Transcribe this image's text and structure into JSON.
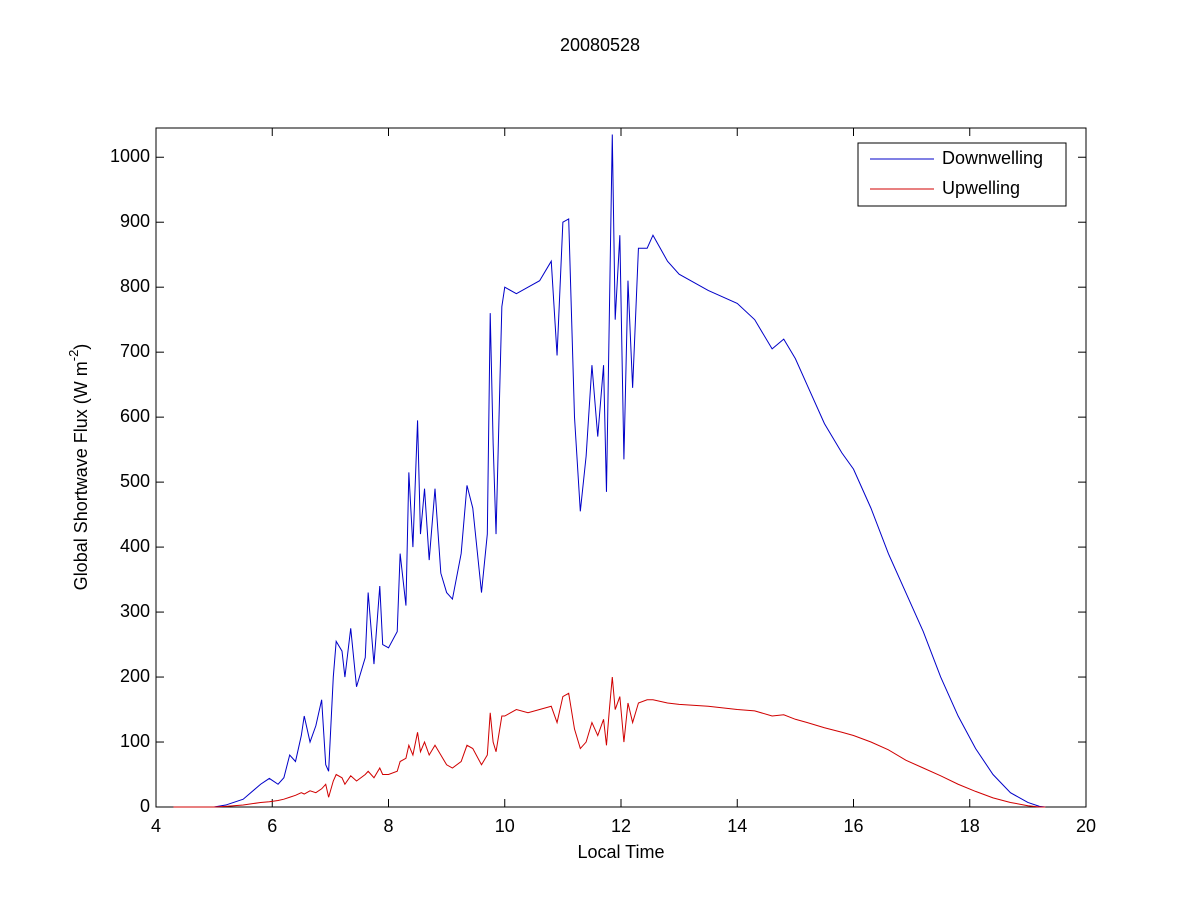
{
  "chart_data": {
    "type": "line",
    "title": "20080528",
    "xlabel": "Local Time",
    "ylabel": {
      "text": "Global Shortwave Flux (W m",
      "superscript": "-2",
      "suffix": ")"
    },
    "xlim": [
      4,
      20
    ],
    "xticks": [
      4,
      6,
      8,
      10,
      12,
      14,
      16,
      18,
      20
    ],
    "ylim": [
      0,
      1045
    ],
    "yticks": [
      0,
      100,
      200,
      300,
      400,
      500,
      600,
      700,
      800,
      900,
      1000
    ],
    "legend": "northeast",
    "x": [
      4.3,
      4.5,
      5.0,
      5.2,
      5.5,
      5.8,
      5.95,
      6.1,
      6.2,
      6.3,
      6.4,
      6.5,
      6.55,
      6.65,
      6.75,
      6.85,
      6.92,
      6.97,
      7.05,
      7.1,
      7.2,
      7.25,
      7.35,
      7.45,
      7.6,
      7.65,
      7.75,
      7.85,
      7.9,
      8.0,
      8.15,
      8.2,
      8.3,
      8.35,
      8.42,
      8.5,
      8.55,
      8.62,
      8.7,
      8.8,
      8.9,
      9.0,
      9.1,
      9.25,
      9.35,
      9.45,
      9.6,
      9.7,
      9.75,
      9.8,
      9.85,
      9.95,
      10.0,
      10.2,
      10.4,
      10.6,
      10.8,
      10.9,
      11.0,
      11.1,
      11.2,
      11.3,
      11.4,
      11.5,
      11.6,
      11.7,
      11.75,
      11.8,
      11.85,
      11.9,
      11.98,
      12.05,
      12.12,
      12.2,
      12.3,
      12.45,
      12.55,
      12.8,
      13.0,
      13.5,
      14.0,
      14.3,
      14.6,
      14.8,
      15.0,
      15.2,
      15.5,
      15.8,
      16.0,
      16.3,
      16.6,
      16.9,
      17.2,
      17.5,
      17.8,
      18.1,
      18.4,
      18.7,
      19.0,
      19.2,
      19.3
    ],
    "series": [
      {
        "name": "Downwelling",
        "color": "#0000c8",
        "values": [
          0,
          0,
          0,
          3,
          12,
          35,
          44,
          35,
          45,
          80,
          70,
          110,
          140,
          100,
          125,
          165,
          65,
          55,
          200,
          255,
          240,
          200,
          275,
          185,
          230,
          330,
          220,
          340,
          250,
          245,
          270,
          390,
          310,
          515,
          400,
          595,
          420,
          490,
          380,
          490,
          360,
          330,
          320,
          390,
          495,
          460,
          330,
          420,
          760,
          560,
          420,
          770,
          800,
          790,
          800,
          810,
          840,
          695,
          900,
          905,
          600,
          455,
          540,
          680,
          570,
          680,
          485,
          760,
          1035,
          750,
          880,
          535,
          810,
          645,
          860,
          860,
          880,
          840,
          820,
          795,
          775,
          750,
          705,
          720,
          690,
          650,
          590,
          545,
          520,
          460,
          390,
          330,
          270,
          200,
          140,
          90,
          50,
          22,
          7,
          1,
          0
        ]
      },
      {
        "name": "Upwelling",
        "color": "#d00000",
        "values": [
          0,
          0,
          0,
          1,
          3,
          7,
          8,
          10,
          12,
          15,
          18,
          22,
          20,
          25,
          22,
          28,
          35,
          15,
          40,
          50,
          45,
          35,
          48,
          40,
          50,
          55,
          45,
          60,
          50,
          50,
          55,
          70,
          75,
          95,
          80,
          115,
          85,
          100,
          80,
          95,
          80,
          65,
          60,
          70,
          95,
          90,
          65,
          80,
          145,
          100,
          85,
          140,
          140,
          150,
          145,
          150,
          155,
          130,
          170,
          175,
          120,
          90,
          100,
          130,
          110,
          135,
          95,
          150,
          200,
          150,
          170,
          100,
          160,
          130,
          160,
          165,
          165,
          160,
          158,
          155,
          150,
          148,
          140,
          142,
          135,
          130,
          122,
          115,
          110,
          100,
          88,
          72,
          60,
          48,
          35,
          24,
          14,
          7,
          2,
          0,
          0
        ]
      }
    ]
  }
}
